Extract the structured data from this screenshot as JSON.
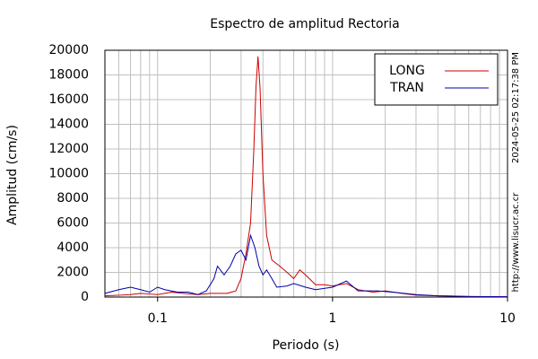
{
  "chart_data": {
    "type": "line",
    "title": "Espectro de amplitud Rectoria",
    "xlabel": "Periodo (s)",
    "ylabel": "Amplitud (cm/s)",
    "timestamp": "2024-05-25 02:17:38 PM",
    "url": "http://www.lisucr.ac.cr",
    "xscale": "log",
    "grid": true,
    "legend": "upper right",
    "xlim": [
      0.05,
      10
    ],
    "ylim": [
      0,
      20000
    ],
    "xticks": [
      0.1,
      1,
      10
    ],
    "xminorticks": [
      0.06,
      0.07,
      0.08,
      0.09,
      0.2,
      0.3,
      0.4,
      0.5,
      0.6,
      0.7,
      0.8,
      0.9,
      2,
      3,
      4,
      5,
      6,
      7,
      8,
      9
    ],
    "yticks": [
      0,
      2000,
      4000,
      6000,
      8000,
      10000,
      12000,
      14000,
      16000,
      18000,
      20000
    ],
    "series": [
      {
        "name": "LONG",
        "color": "#cc0000",
        "x": [
          0.05,
          0.06,
          0.07,
          0.08,
          0.09,
          0.1,
          0.12,
          0.14,
          0.17,
          0.2,
          0.25,
          0.28,
          0.3,
          0.32,
          0.34,
          0.355,
          0.365,
          0.375,
          0.385,
          0.4,
          0.42,
          0.45,
          0.5,
          0.55,
          0.6,
          0.65,
          0.7,
          0.8,
          0.9,
          1.0,
          1.2,
          1.4,
          1.7,
          2.0,
          2.5,
          3.0,
          4.0,
          6.0,
          10
        ],
        "values": [
          100,
          150,
          200,
          300,
          250,
          200,
          400,
          300,
          200,
          300,
          300,
          500,
          1500,
          3500,
          6000,
          12000,
          17000,
          19500,
          17000,
          10000,
          5000,
          3000,
          2500,
          2000,
          1500,
          2200,
          1800,
          1000,
          1000,
          900,
          1100,
          600,
          400,
          500,
          300,
          150,
          100,
          50,
          30
        ]
      },
      {
        "name": "TRAN",
        "color": "#0000aa",
        "x": [
          0.05,
          0.06,
          0.07,
          0.08,
          0.09,
          0.1,
          0.11,
          0.13,
          0.15,
          0.17,
          0.19,
          0.21,
          0.22,
          0.24,
          0.26,
          0.28,
          0.3,
          0.32,
          0.34,
          0.36,
          0.38,
          0.4,
          0.42,
          0.45,
          0.48,
          0.55,
          0.6,
          0.7,
          0.8,
          1.0,
          1.2,
          1.4,
          1.8,
          2.2,
          3.0,
          4.0,
          6.0,
          10
        ],
        "values": [
          300,
          600,
          800,
          600,
          400,
          800,
          600,
          400,
          400,
          200,
          500,
          1500,
          2500,
          1800,
          2500,
          3500,
          3800,
          3000,
          5000,
          4000,
          2500,
          1800,
          2200,
          1500,
          800,
          900,
          1100,
          800,
          600,
          800,
          1300,
          500,
          500,
          400,
          200,
          100,
          50,
          30
        ]
      }
    ]
  }
}
